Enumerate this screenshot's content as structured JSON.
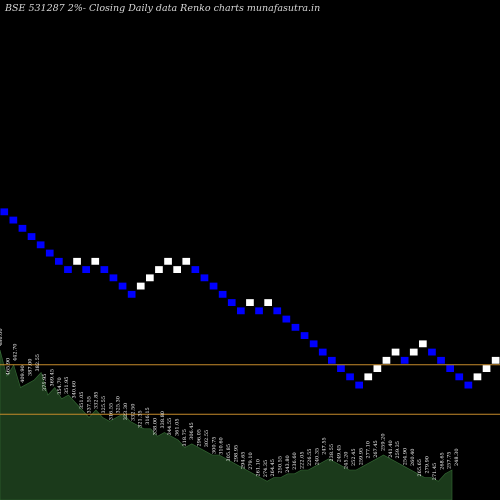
{
  "chart": {
    "title": "BSE 531287 2%-  Closing Daily data  Renko  charts munafasutra.in"
  },
  "colors": {
    "background": "#000000",
    "up_brick": "#ffffff",
    "down_brick": "#0000ff",
    "brick_border": "#000000",
    "reference_line": "#c58a2a",
    "volume_fill": "#1b3a1b",
    "volume_stroke": "#356b35",
    "label_text": "#ffffff"
  },
  "chart_data": {
    "type": "renko",
    "reference_lines": [
      {
        "bricks_below_top": 19
      },
      {
        "bricks_below_top": 25
      }
    ],
    "bricks": [
      {
        "dir": "down",
        "level": 0
      },
      {
        "dir": "down",
        "level": 1
      },
      {
        "dir": "down",
        "level": 2
      },
      {
        "dir": "down",
        "level": 3
      },
      {
        "dir": "down",
        "level": 4
      },
      {
        "dir": "down",
        "level": 5
      },
      {
        "dir": "down",
        "level": 6
      },
      {
        "dir": "down",
        "level": 7
      },
      {
        "dir": "up",
        "level": 6
      },
      {
        "dir": "down",
        "level": 7
      },
      {
        "dir": "up",
        "level": 6
      },
      {
        "dir": "down",
        "level": 7
      },
      {
        "dir": "down",
        "level": 8
      },
      {
        "dir": "down",
        "level": 9
      },
      {
        "dir": "down",
        "level": 10
      },
      {
        "dir": "up",
        "level": 9
      },
      {
        "dir": "up",
        "level": 8
      },
      {
        "dir": "up",
        "level": 7
      },
      {
        "dir": "up",
        "level": 6
      },
      {
        "dir": "up",
        "level": 7
      },
      {
        "dir": "up",
        "level": 6
      },
      {
        "dir": "down",
        "level": 7
      },
      {
        "dir": "down",
        "level": 8
      },
      {
        "dir": "down",
        "level": 9
      },
      {
        "dir": "down",
        "level": 10
      },
      {
        "dir": "down",
        "level": 11
      },
      {
        "dir": "down",
        "level": 12
      },
      {
        "dir": "up",
        "level": 11
      },
      {
        "dir": "down",
        "level": 12
      },
      {
        "dir": "up",
        "level": 11
      },
      {
        "dir": "down",
        "level": 12
      },
      {
        "dir": "down",
        "level": 13
      },
      {
        "dir": "down",
        "level": 14
      },
      {
        "dir": "down",
        "level": 15
      },
      {
        "dir": "down",
        "level": 16
      },
      {
        "dir": "down",
        "level": 17
      },
      {
        "dir": "down",
        "level": 18
      },
      {
        "dir": "down",
        "level": 19
      },
      {
        "dir": "down",
        "level": 20
      },
      {
        "dir": "down",
        "level": 21
      },
      {
        "dir": "up",
        "level": 20
      },
      {
        "dir": "up",
        "level": 19
      },
      {
        "dir": "up",
        "level": 18
      },
      {
        "dir": "up",
        "level": 17
      },
      {
        "dir": "down",
        "level": 18
      },
      {
        "dir": "up",
        "level": 17
      },
      {
        "dir": "up",
        "level": 16
      },
      {
        "dir": "down",
        "level": 17
      },
      {
        "dir": "down",
        "level": 18
      },
      {
        "dir": "down",
        "level": 19
      },
      {
        "dir": "down",
        "level": 20
      },
      {
        "dir": "down",
        "level": 21
      },
      {
        "dir": "up",
        "level": 20
      },
      {
        "dir": "up",
        "level": 19
      },
      {
        "dir": "up",
        "level": 18
      },
      {
        "dir": "up",
        "level": 17
      },
      {
        "dir": "down",
        "level": 18
      },
      {
        "dir": "down",
        "level": 19
      },
      {
        "dir": "down",
        "level": 20
      },
      {
        "dir": "down",
        "level": 21
      }
    ],
    "volume": [
      40,
      33,
      36,
      30,
      31,
      32,
      34,
      28,
      30,
      27,
      28,
      26,
      24,
      22,
      24,
      22,
      21,
      22,
      23,
      21,
      20,
      19,
      19,
      17,
      18,
      17,
      16,
      14,
      15,
      14,
      13,
      12,
      12,
      11,
      10,
      9,
      8,
      7,
      6,
      5,
      6,
      6,
      7,
      7,
      8,
      8,
      9,
      10,
      11,
      10,
      9,
      8,
      8,
      9,
      10,
      11,
      12,
      11,
      10,
      9,
      8,
      7,
      6,
      6,
      5,
      7,
      8
    ],
    "price_labels": [
      "486.00",
      "465.90",
      "442.70",
      "409.90",
      "387.00",
      "382.55",
      "375.95",
      "369.45",
      "354.70",
      "351.95",
      "340.60",
      "351.05",
      "337.55",
      "332.85",
      "325.55",
      "316.55",
      "325.30",
      "323.30",
      "332.50",
      "321.35",
      "316.15",
      "338.00",
      "338.80",
      "344.55",
      "361.05",
      "318.75",
      "306.45",
      "296.05",
      "302.55",
      "300.75",
      "310.60",
      "305.85",
      "298.95",
      "294.65",
      "279.10",
      "261.10",
      "274.35",
      "264.45",
      "250.55",
      "243.80",
      "236.60",
      "222.05",
      "226.55",
      "240.35",
      "247.55",
      "238.55",
      "249.45",
      "245.20",
      "252.45",
      "259.95",
      "277.10",
      "267.45",
      "259.20",
      "241.40",
      "259.35",
      "254.90",
      "260.40",
      "265.65",
      "279.90",
      "271.45",
      "268.65",
      "257.75",
      "248.30"
    ]
  }
}
